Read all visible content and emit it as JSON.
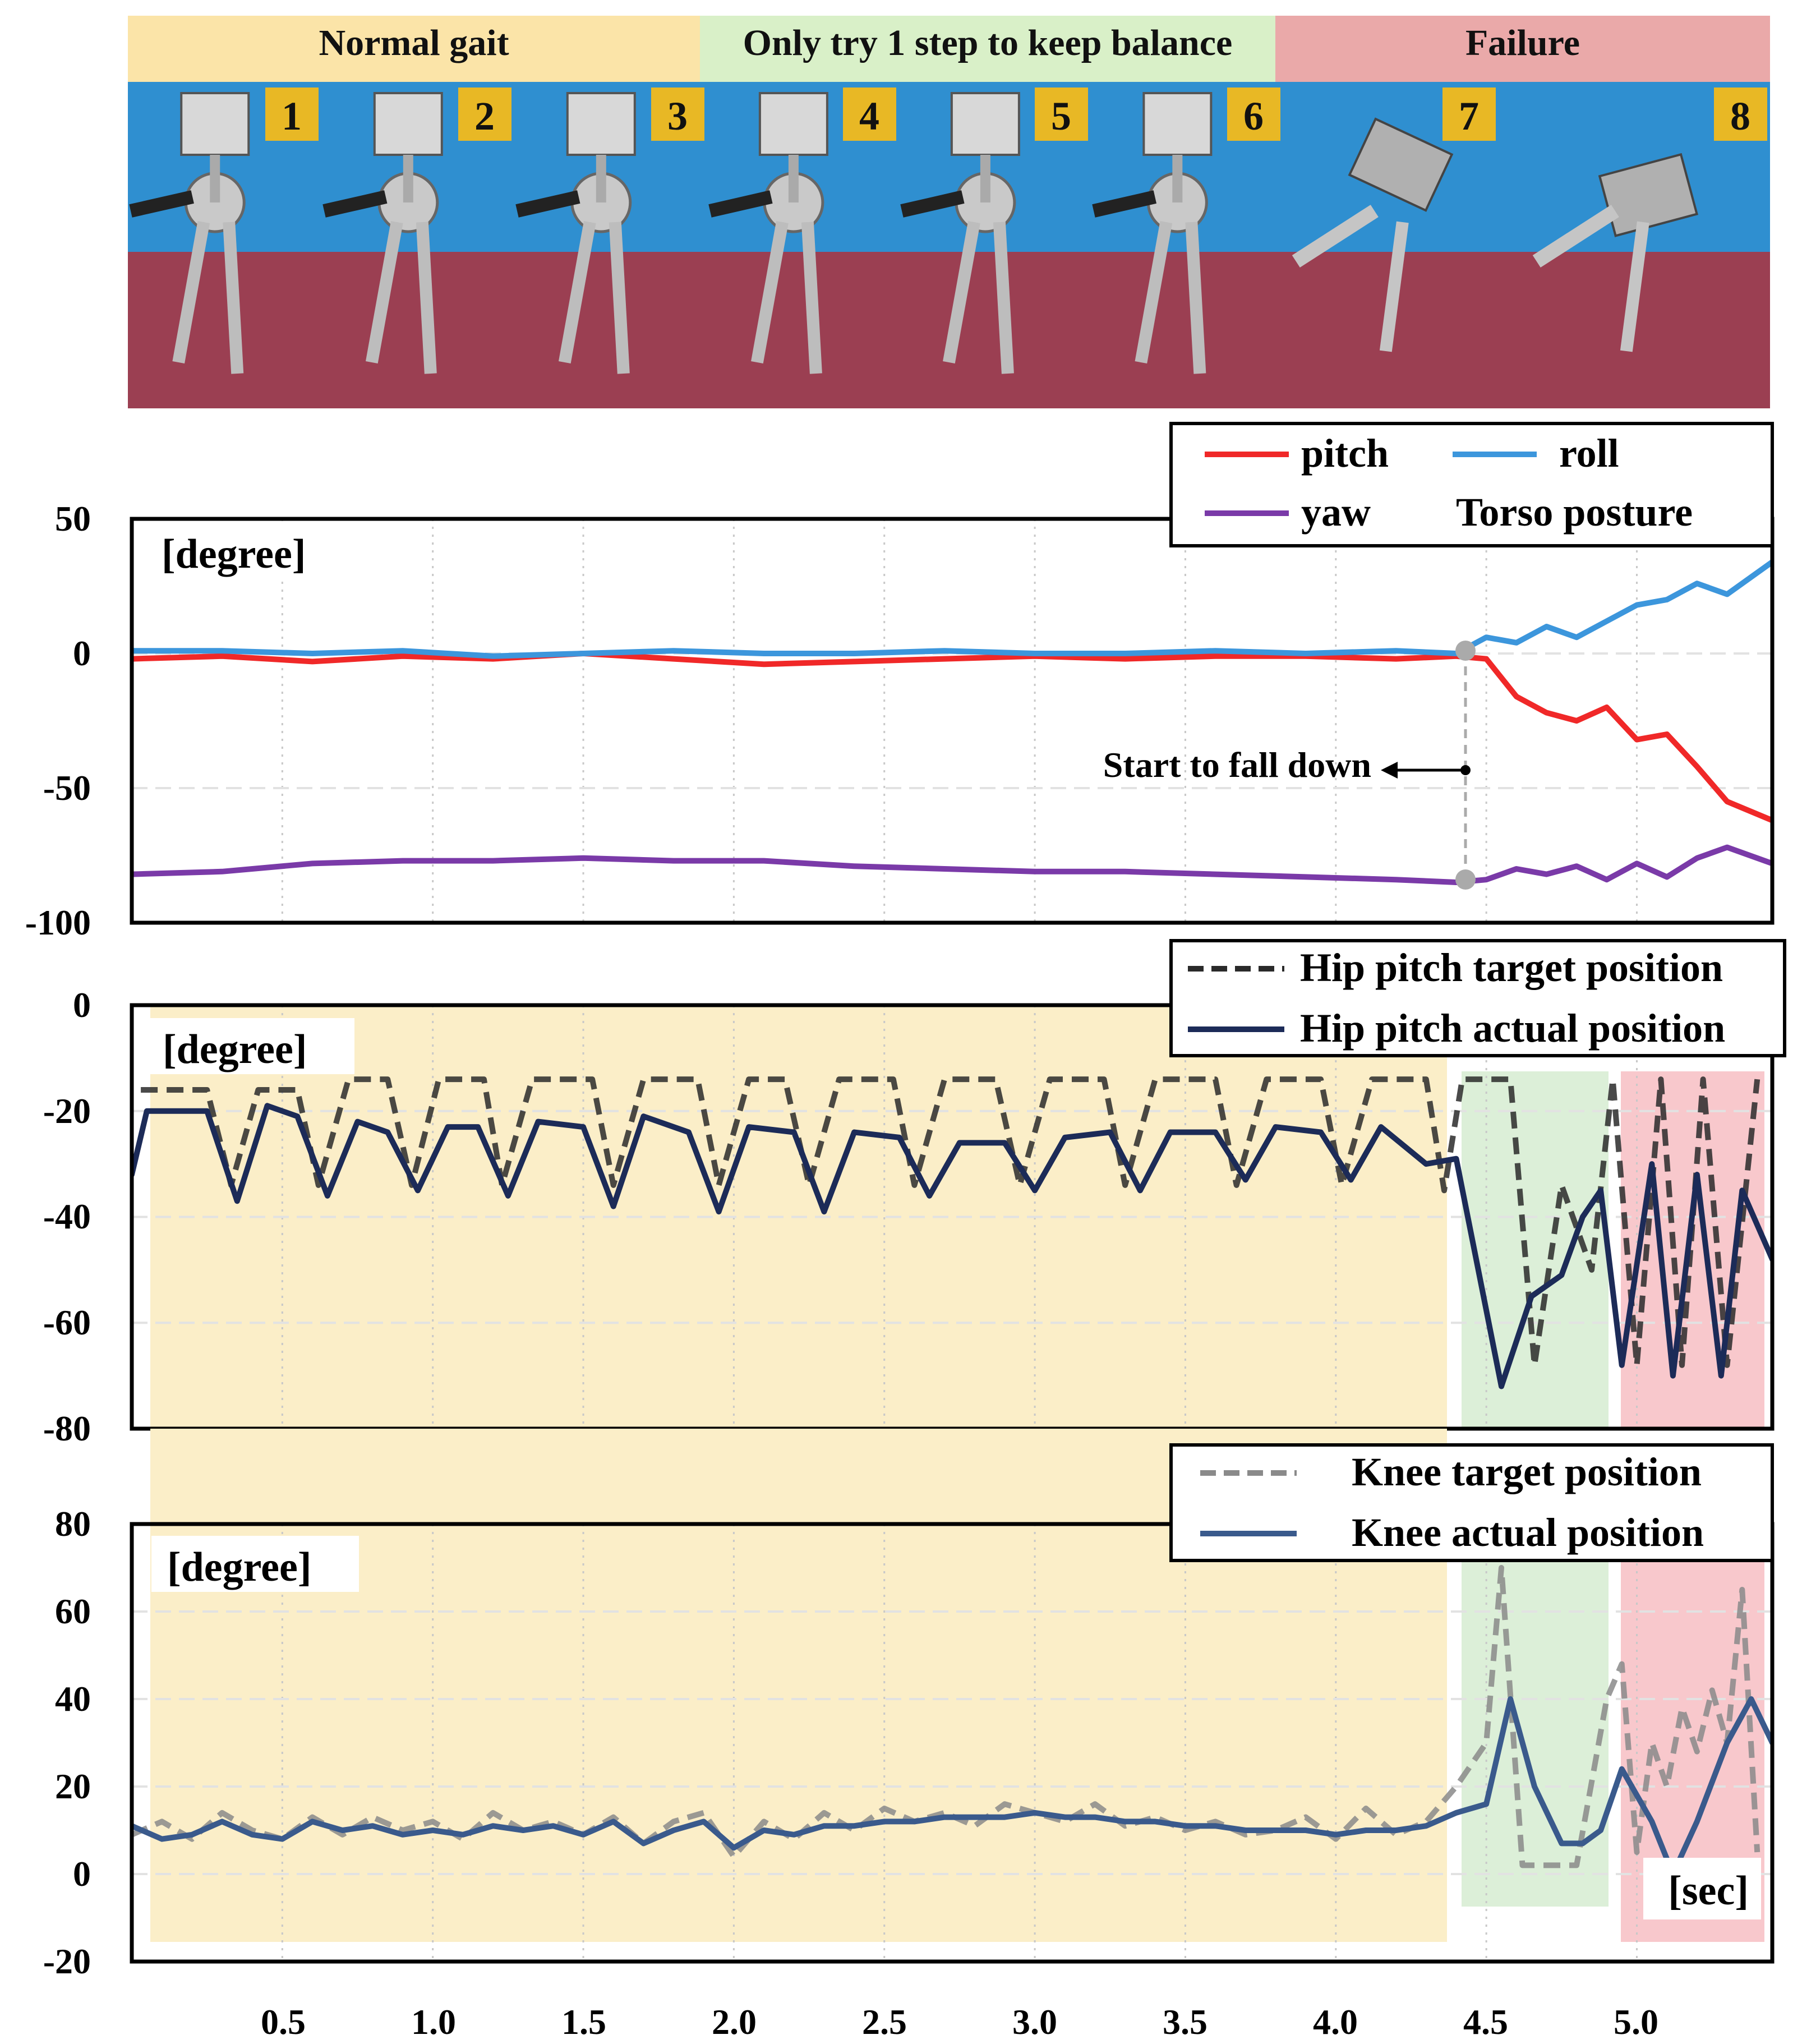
{
  "phases": [
    {
      "label": "Normal gait",
      "color": "#fbe4a8"
    },
    {
      "label": "Only try 1 step to keep balance",
      "color": "#d9f0c8"
    },
    {
      "label": "Failure",
      "color": "#eaa9a9"
    }
  ],
  "frames": [
    "1",
    "2",
    "3",
    "4",
    "5",
    "6",
    "7",
    "8"
  ],
  "colors": {
    "pitch": "#f02828",
    "roll": "#3c96dc",
    "yaw": "#7a3aa8",
    "hip_target": "#2a2a2a",
    "hip_actual": "#1c2b58",
    "knee_target": "#8a8a8a",
    "knee_actual": "#3a5a8c",
    "region_normal": "#fbeec8",
    "region_balance": "#dcefd8",
    "region_failure": "#f8c8cc"
  },
  "xaxis": {
    "ticks": [
      "0.5",
      "1.0",
      "1.5",
      "2.0",
      "2.5",
      "3.0",
      "3.5",
      "4.0",
      "4.5",
      "5.0"
    ],
    "unit": "[sec]"
  },
  "chart_data": [
    {
      "type": "line",
      "unit_label": "[degree]",
      "ylim": [
        -100,
        50
      ],
      "yticks": [
        "50",
        "0",
        "-50",
        "-100"
      ],
      "xlim": [
        0,
        5.45
      ],
      "legend_title": "Torso posture",
      "annotation": "Start to fall down",
      "event_x": 4.4,
      "series": [
        {
          "name": "pitch",
          "key": "pitch",
          "style": "solid",
          "x": [
            0,
            0.3,
            0.6,
            0.9,
            1.2,
            1.5,
            1.8,
            2.1,
            2.4,
            2.7,
            3.0,
            3.3,
            3.6,
            3.9,
            4.2,
            4.4,
            4.5,
            4.6,
            4.7,
            4.8,
            4.9,
            5.0,
            5.1,
            5.2,
            5.3,
            5.45
          ],
          "y": [
            -2,
            -1,
            -3,
            -1,
            -2,
            0,
            -2,
            -4,
            -3,
            -2,
            -1,
            -2,
            -1,
            -1,
            -2,
            -1,
            -2,
            -16,
            -22,
            -25,
            -20,
            -32,
            -30,
            -42,
            -55,
            -62
          ]
        },
        {
          "name": "roll",
          "key": "roll",
          "style": "solid",
          "x": [
            0,
            0.3,
            0.6,
            0.9,
            1.2,
            1.5,
            1.8,
            2.1,
            2.4,
            2.7,
            3.0,
            3.3,
            3.6,
            3.9,
            4.2,
            4.4,
            4.5,
            4.6,
            4.7,
            4.8,
            4.9,
            5.0,
            5.1,
            5.2,
            5.3,
            5.45
          ],
          "y": [
            1,
            1,
            0,
            1,
            -1,
            0,
            1,
            0,
            0,
            1,
            0,
            0,
            1,
            0,
            1,
            0,
            6,
            4,
            10,
            6,
            12,
            18,
            20,
            26,
            22,
            34
          ]
        },
        {
          "name": "yaw",
          "key": "yaw",
          "style": "solid",
          "x": [
            0,
            0.3,
            0.6,
            0.9,
            1.2,
            1.5,
            1.8,
            2.1,
            2.4,
            2.7,
            3.0,
            3.3,
            3.6,
            3.9,
            4.2,
            4.4,
            4.5,
            4.6,
            4.7,
            4.8,
            4.9,
            5.0,
            5.1,
            5.2,
            5.3,
            5.45
          ],
          "y": [
            -82,
            -81,
            -78,
            -77,
            -77,
            -76,
            -77,
            -77,
            -79,
            -80,
            -81,
            -81,
            -82,
            -83,
            -84,
            -85,
            -84,
            -80,
            -82,
            -79,
            -84,
            -78,
            -83,
            -76,
            -72,
            -78
          ]
        }
      ]
    },
    {
      "type": "line",
      "unit_label": "[degree]",
      "ylim": [
        -80,
        0
      ],
      "yticks": [
        "0",
        "-20",
        "-40",
        "-60",
        "-80"
      ],
      "xlim": [
        0,
        5.45
      ],
      "series": [
        {
          "name": "Hip pitch target position",
          "key": "hip_target",
          "style": "dashed",
          "x": [
            0.03,
            0.25,
            0.33,
            0.42,
            0.55,
            0.62,
            0.72,
            0.85,
            0.93,
            1.02,
            1.17,
            1.23,
            1.33,
            1.53,
            1.6,
            1.7,
            1.88,
            1.95,
            2.05,
            2.17,
            2.25,
            2.35,
            2.53,
            2.6,
            2.7,
            2.87,
            2.95,
            3.05,
            3.23,
            3.3,
            3.4,
            3.6,
            3.67,
            3.77,
            3.95,
            4.02,
            4.12,
            4.3,
            4.36,
            4.42,
            4.58,
            4.66,
            4.75,
            4.85,
            4.92,
            5.0,
            5.08,
            5.15,
            5.22,
            5.3,
            5.4
          ],
          "y": [
            -16,
            -16,
            -34,
            -16,
            -16,
            -34,
            -14,
            -14,
            -34,
            -14,
            -14,
            -34,
            -14,
            -14,
            -34,
            -14,
            -14,
            -34,
            -14,
            -14,
            -34,
            -14,
            -14,
            -34,
            -14,
            -14,
            -34,
            -14,
            -14,
            -34,
            -14,
            -14,
            -34,
            -14,
            -14,
            -34,
            -14,
            -14,
            -35,
            -14,
            -14,
            -68,
            -34,
            -50,
            -14,
            -68,
            -14,
            -68,
            -14,
            -68,
            -14
          ]
        },
        {
          "name": "Hip pitch actual position",
          "key": "hip_actual",
          "style": "solid",
          "x": [
            0.0,
            0.05,
            0.25,
            0.35,
            0.45,
            0.55,
            0.65,
            0.75,
            0.85,
            0.95,
            1.05,
            1.15,
            1.25,
            1.35,
            1.5,
            1.6,
            1.7,
            1.85,
            1.95,
            2.05,
            2.2,
            2.3,
            2.4,
            2.55,
            2.65,
            2.75,
            2.9,
            3.0,
            3.1,
            3.25,
            3.35,
            3.45,
            3.6,
            3.7,
            3.8,
            3.95,
            4.05,
            4.15,
            4.3,
            4.4,
            4.55,
            4.65,
            4.75,
            4.82,
            4.88,
            4.95,
            5.05,
            5.12,
            5.2,
            5.28,
            5.35,
            5.45
          ],
          "y": [
            -32,
            -20,
            -20,
            -37,
            -19,
            -21,
            -36,
            -22,
            -24,
            -35,
            -23,
            -23,
            -36,
            -22,
            -23,
            -38,
            -21,
            -24,
            -39,
            -23,
            -24,
            -39,
            -24,
            -25,
            -36,
            -26,
            -26,
            -35,
            -25,
            -24,
            -35,
            -24,
            -24,
            -33,
            -23,
            -24,
            -33,
            -23,
            -30,
            -29,
            -72,
            -55,
            -51,
            -40,
            -35,
            -68,
            -30,
            -70,
            -32,
            -70,
            -35,
            -48
          ]
        }
      ]
    },
    {
      "type": "line",
      "unit_label": "[degree]",
      "ylim": [
        -20,
        80
      ],
      "yticks": [
        "80",
        "60",
        "40",
        "20",
        "0",
        "-20"
      ],
      "xlim": [
        0,
        5.45
      ],
      "series": [
        {
          "name": "Knee target position",
          "key": "knee_target",
          "style": "dashed",
          "x": [
            0.0,
            0.1,
            0.2,
            0.3,
            0.4,
            0.5,
            0.6,
            0.7,
            0.8,
            0.9,
            1.0,
            1.1,
            1.2,
            1.3,
            1.4,
            1.5,
            1.6,
            1.7,
            1.8,
            1.9,
            2.0,
            2.1,
            2.2,
            2.3,
            2.4,
            2.5,
            2.6,
            2.7,
            2.8,
            2.9,
            3.0,
            3.1,
            3.2,
            3.3,
            3.4,
            3.5,
            3.6,
            3.7,
            3.8,
            3.9,
            4.0,
            4.1,
            4.2,
            4.3,
            4.4,
            4.5,
            4.55,
            4.62,
            4.7,
            4.8,
            4.9,
            4.95,
            5.0,
            5.05,
            5.1,
            5.15,
            5.2,
            5.25,
            5.3,
            5.35,
            5.4
          ],
          "y": [
            9,
            12,
            8,
            14,
            10,
            8,
            13,
            9,
            13,
            10,
            12,
            8,
            14,
            10,
            12,
            9,
            13,
            7,
            12,
            14,
            4,
            12,
            8,
            14,
            10,
            15,
            12,
            14,
            11,
            16,
            14,
            12,
            16,
            11,
            13,
            10,
            12,
            9,
            10,
            13,
            8,
            15,
            9,
            12,
            20,
            30,
            70,
            2,
            2,
            2,
            40,
            48,
            5,
            30,
            20,
            38,
            28,
            42,
            30,
            65,
            5
          ]
        },
        {
          "name": "Knee actual position",
          "key": "knee_actual",
          "style": "solid",
          "x": [
            0.0,
            0.1,
            0.2,
            0.3,
            0.4,
            0.5,
            0.6,
            0.7,
            0.8,
            0.9,
            1.0,
            1.1,
            1.2,
            1.3,
            1.4,
            1.5,
            1.6,
            1.7,
            1.8,
            1.9,
            2.0,
            2.1,
            2.2,
            2.3,
            2.4,
            2.5,
            2.6,
            2.7,
            2.8,
            2.9,
            3.0,
            3.1,
            3.2,
            3.3,
            3.4,
            3.5,
            3.6,
            3.7,
            3.8,
            3.9,
            4.0,
            4.1,
            4.2,
            4.3,
            4.4,
            4.5,
            4.58,
            4.66,
            4.75,
            4.82,
            4.88,
            4.95,
            5.05,
            5.12,
            5.2,
            5.3,
            5.38,
            5.45
          ],
          "y": [
            11,
            8,
            9,
            12,
            9,
            8,
            12,
            10,
            11,
            9,
            10,
            9,
            11,
            10,
            11,
            9,
            12,
            7,
            10,
            12,
            6,
            10,
            9,
            11,
            11,
            12,
            12,
            13,
            13,
            13,
            14,
            13,
            13,
            12,
            12,
            11,
            11,
            10,
            10,
            10,
            9,
            10,
            10,
            11,
            14,
            16,
            40,
            20,
            7,
            7,
            10,
            24,
            12,
            0,
            12,
            30,
            40,
            30
          ]
        }
      ]
    }
  ]
}
